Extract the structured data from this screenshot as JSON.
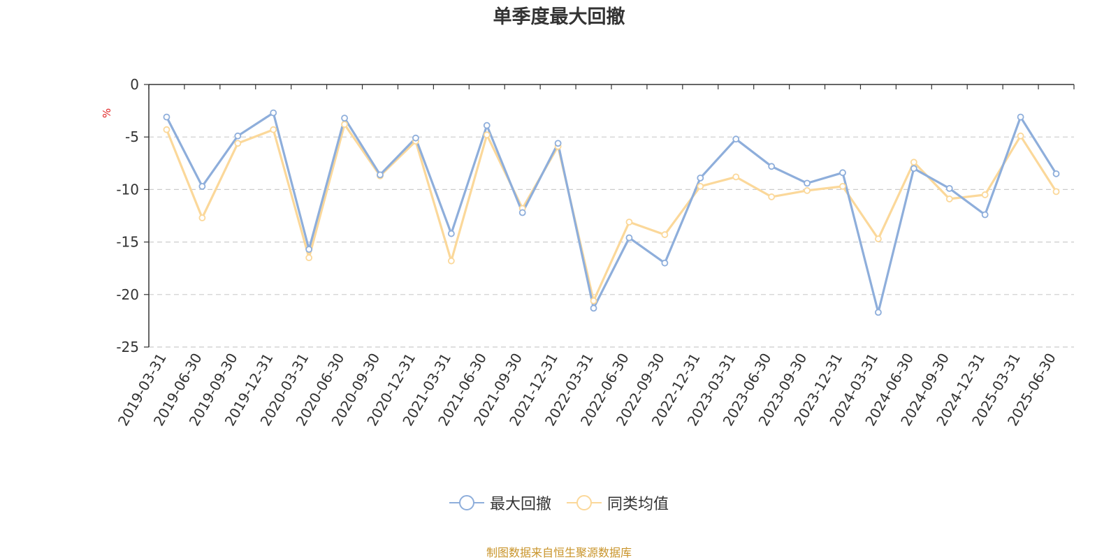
{
  "chart_data": {
    "type": "line",
    "title": "单季度最大回撤",
    "ylabel": "%",
    "ylim": [
      -25,
      0
    ],
    "yticks": [
      0,
      -5,
      -10,
      -15,
      -20,
      -25
    ],
    "grid": true,
    "legend_position": "bottom",
    "categories": [
      "2019-03-31",
      "2019-06-30",
      "2019-09-30",
      "2019-12-31",
      "2020-03-31",
      "2020-06-30",
      "2020-09-30",
      "2020-12-31",
      "2021-03-31",
      "2021-06-30",
      "2021-09-30",
      "2021-12-31",
      "2022-03-31",
      "2022-06-30",
      "2022-09-30",
      "2022-12-31",
      "2023-03-31",
      "2023-06-30",
      "2023-09-30",
      "2023-12-31",
      "2024-03-31",
      "2024-06-30",
      "2024-09-30",
      "2024-12-31",
      "2025-03-31",
      "2025-06-30"
    ],
    "series": [
      {
        "name": "最大回撤",
        "color": "#8eaedb",
        "values": [
          -3.1,
          -9.7,
          -4.9,
          -2.7,
          -15.7,
          -3.2,
          -8.6,
          -5.1,
          -14.2,
          -3.9,
          -12.2,
          -5.6,
          -21.3,
          -14.6,
          -17.0,
          -8.9,
          -5.2,
          -7.8,
          -9.4,
          -8.4,
          -21.7,
          -8.0,
          -9.9,
          -12.4,
          -3.1,
          -8.5
        ]
      },
      {
        "name": "同类均值",
        "color": "#fbd89a",
        "values": [
          -4.3,
          -12.7,
          -5.6,
          -4.3,
          -16.5,
          -3.8,
          -8.7,
          -5.4,
          -16.8,
          -4.8,
          -11.8,
          -5.9,
          -20.6,
          -13.1,
          -14.3,
          -9.7,
          -8.8,
          -10.7,
          -10.1,
          -9.7,
          -14.7,
          -7.4,
          -10.9,
          -10.5,
          -4.9,
          -10.2
        ]
      }
    ]
  },
  "footer": {
    "source": "制图数据来自恒生聚源数据库"
  }
}
